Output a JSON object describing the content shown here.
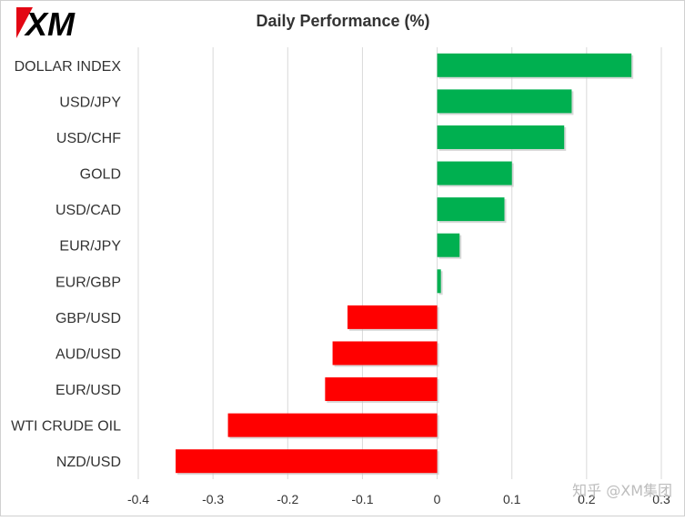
{
  "chart_data": {
    "type": "bar",
    "orientation": "horizontal",
    "title": "Daily Performance  (%)",
    "xlabel": "",
    "ylabel": "",
    "xlim": [
      -0.4,
      0.3
    ],
    "ticks": [
      -0.4,
      -0.3,
      -0.2,
      -0.1,
      0,
      0.1,
      0.2,
      0.3
    ],
    "tick_labels": [
      "-0.4",
      "-0.3",
      "-0.2",
      "-0.1",
      "0",
      "0.1",
      "0.2",
      "0.3"
    ],
    "grid": true,
    "legend": "none",
    "categories": [
      "DOLLAR INDEX",
      "USD/JPY",
      "USD/CHF",
      "GOLD",
      "USD/CAD",
      "EUR/JPY",
      "EUR/GBP",
      "GBP/USD",
      "AUD/USD",
      "EUR/USD",
      "WTI CRUDE OIL",
      "NZD/USD"
    ],
    "values": [
      0.26,
      0.18,
      0.17,
      0.1,
      0.09,
      0.03,
      0.005,
      -0.12,
      -0.14,
      -0.15,
      -0.28,
      -0.35
    ],
    "colors": {
      "positive": "#00b050",
      "negative": "#ff0000",
      "grid": "#d9d9d9",
      "border": "#d0d0d0"
    }
  },
  "logo": {
    "text": "XM"
  },
  "watermark": {
    "text": "知乎 @XM集团"
  }
}
